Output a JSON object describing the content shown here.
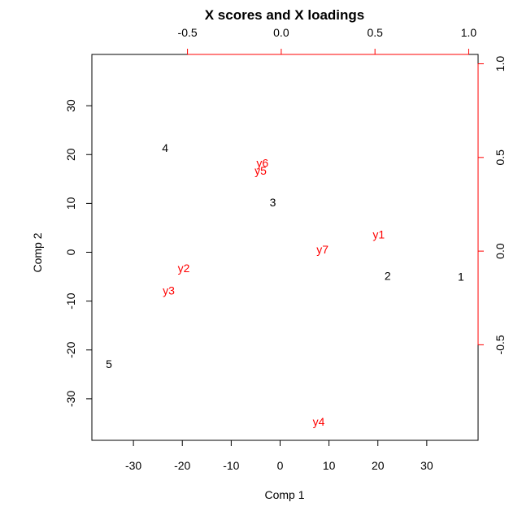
{
  "chart_data": {
    "type": "scatter",
    "title": "X scores and X loadings",
    "xlabel": "Comp 1",
    "ylabel": "Comp 2",
    "xlim": [
      -38.5,
      40.5
    ],
    "ylim": [
      -38.5,
      40.5
    ],
    "x_ticks": [
      -30,
      -20,
      -10,
      0,
      10,
      20,
      30
    ],
    "y_ticks": [
      -30,
      -20,
      -10,
      0,
      10,
      20,
      30
    ],
    "secondary_x_lim": [
      -1.01,
      1.05
    ],
    "secondary_y_lim": [
      -1.01,
      1.05
    ],
    "secondary_x_ticks": [
      "-0.5",
      "0.0",
      "0.5",
      "1.0"
    ],
    "secondary_y_ticks": [
      "-0.5",
      "0.0",
      "0.5",
      "1.0"
    ],
    "secondary_x_tick_values": [
      -0.5,
      0.0,
      0.5,
      1.0
    ],
    "secondary_y_tick_values": [
      -0.5,
      0.0,
      0.5,
      1.0
    ],
    "secondary_axis_color": "#ff0000",
    "score_color": "#000000",
    "loading_color": "#ff0000",
    "scores": [
      {
        "label": "1",
        "x": 37.0,
        "y": -5.0
      },
      {
        "label": "2",
        "x": 22.0,
        "y": -4.8
      },
      {
        "label": "3",
        "x": -1.5,
        "y": 10.2
      },
      {
        "label": "4",
        "x": -23.5,
        "y": 21.4
      },
      {
        "label": "5",
        "x": -35.0,
        "y": -22.9
      }
    ],
    "loadings": [
      {
        "label": "y1",
        "x": 0.52,
        "y": 0.09
      },
      {
        "label": "y2",
        "x": -0.52,
        "y": -0.09
      },
      {
        "label": "y3",
        "x": -0.6,
        "y": -0.21
      },
      {
        "label": "y4",
        "x": 0.2,
        "y": -0.91
      },
      {
        "label": "y5",
        "x": -0.11,
        "y": 0.43
      },
      {
        "label": "y6",
        "x": -0.1,
        "y": 0.47
      },
      {
        "label": "y7",
        "x": 0.22,
        "y": 0.01
      }
    ]
  }
}
